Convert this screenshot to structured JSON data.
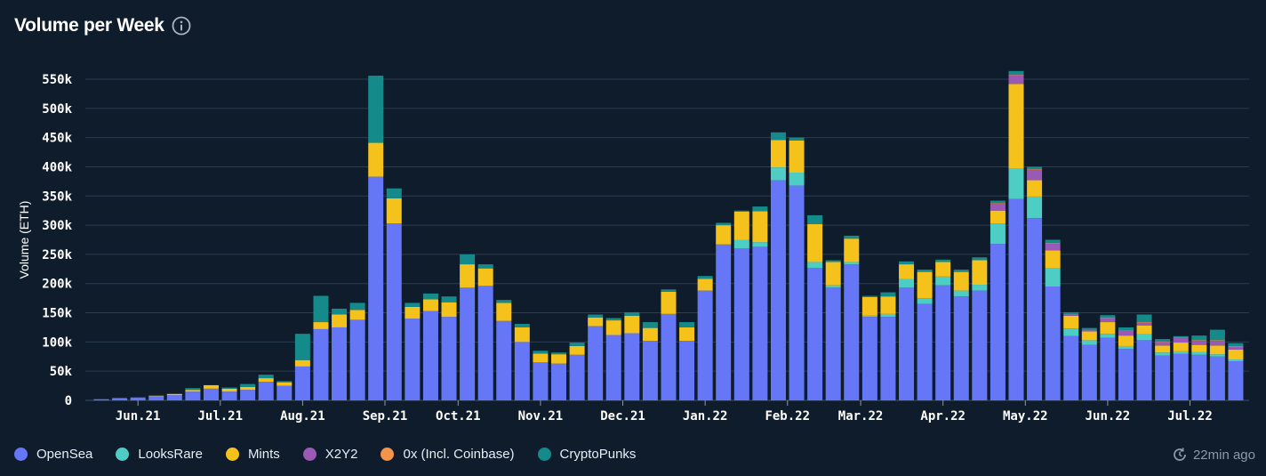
{
  "header": {
    "title": "Volume per Week",
    "info_icon": "info-circle-icon"
  },
  "status": {
    "refresh_icon": "refresh-clock-icon",
    "updated": "22min ago"
  },
  "chart_data": {
    "type": "bar",
    "stacked": true,
    "title": "Volume per Week",
    "xlabel": "",
    "ylabel": "Volume (ETH)",
    "ylim": [
      0,
      570000
    ],
    "yticks": [
      0,
      50000,
      100000,
      150000,
      200000,
      250000,
      300000,
      350000,
      400000,
      450000,
      500000,
      550000
    ],
    "ytick_labels": [
      "0",
      "50k",
      "100k",
      "150k",
      "200k",
      "250k",
      "300k",
      "350k",
      "400k",
      "450k",
      "500k",
      "550k"
    ],
    "x_ticks": [
      {
        "label": "Jun.21",
        "index": 2
      },
      {
        "label": "Jul.21",
        "index": 6.5
      },
      {
        "label": "Aug.21",
        "index": 11
      },
      {
        "label": "Sep.21",
        "index": 15.5
      },
      {
        "label": "Oct.21",
        "index": 19.5
      },
      {
        "label": "Nov.21",
        "index": 24
      },
      {
        "label": "Dec.21",
        "index": 28.5
      },
      {
        "label": "Jan.22",
        "index": 33
      },
      {
        "label": "Feb.22",
        "index": 37.5
      },
      {
        "label": "Mar.22",
        "index": 41.5
      },
      {
        "label": "Apr.22",
        "index": 46
      },
      {
        "label": "May.22",
        "index": 50.5
      },
      {
        "label": "Jun.22",
        "index": 55
      },
      {
        "label": "Jul.22",
        "index": 59.5
      }
    ],
    "legend": [
      "OpenSea",
      "LooksRare",
      "Mints",
      "X2Y2",
      "0x (Incl. Coinbase)",
      "CryptoPunks"
    ],
    "colors": {
      "OpenSea": "#6577f7",
      "LooksRare": "#4ecdc4",
      "Mints": "#f5c21b",
      "X2Y2": "#9b59b6",
      "0x (Incl. Coinbase)": "#f39449",
      "CryptoPunks": "#148a8a"
    },
    "series": [
      {
        "name": "OpenSea",
        "values": [
          2000,
          4000,
          5000,
          7000,
          9000,
          15000,
          20000,
          15000,
          18000,
          32000,
          25000,
          58000,
          122000,
          125000,
          138000,
          383000,
          303000,
          140000,
          153000,
          143000,
          193000,
          196000,
          136000,
          100000,
          65000,
          63000,
          78000,
          127000,
          112000,
          115000,
          102000,
          148000,
          102000,
          188000,
          267000,
          260000,
          263000,
          377000,
          368000,
          227000,
          193000,
          233000,
          143000,
          143000,
          193000,
          165000,
          197000,
          178000,
          188000,
          268000,
          345000,
          312000,
          195000,
          110000,
          95000,
          107000,
          88000,
          103000,
          77000,
          80000,
          78000,
          75000,
          67000
        ]
      },
      {
        "name": "LooksRare",
        "values": [
          0,
          0,
          0,
          0,
          0,
          0,
          0,
          0,
          0,
          0,
          0,
          0,
          0,
          0,
          0,
          0,
          0,
          0,
          0,
          0,
          0,
          0,
          0,
          0,
          0,
          0,
          0,
          0,
          0,
          0,
          0,
          0,
          0,
          0,
          0,
          15000,
          8000,
          22000,
          22000,
          10000,
          4000,
          4000,
          2000,
          5000,
          15000,
          10000,
          15000,
          10000,
          10000,
          35000,
          52000,
          37000,
          32000,
          13000,
          8000,
          7000,
          5000,
          10000,
          5000,
          4000,
          5000,
          4000,
          3000
        ]
      },
      {
        "name": "Mints",
        "values": [
          0,
          0,
          0,
          1000,
          2000,
          3000,
          6000,
          5000,
          5000,
          6000,
          6000,
          11000,
          12000,
          22000,
          17000,
          58000,
          43000,
          20000,
          20000,
          25000,
          40000,
          30000,
          31000,
          25000,
          15000,
          16000,
          15000,
          15000,
          25000,
          30000,
          22000,
          38000,
          23000,
          20000,
          33000,
          48000,
          53000,
          47000,
          55000,
          65000,
          40000,
          40000,
          32000,
          30000,
          25000,
          45000,
          25000,
          32000,
          42000,
          22000,
          145000,
          28000,
          30000,
          22000,
          15000,
          20000,
          18000,
          15000,
          12000,
          15000,
          12000,
          15000,
          17000
        ]
      },
      {
        "name": "X2Y2",
        "values": [
          0,
          0,
          0,
          0,
          0,
          0,
          0,
          0,
          0,
          0,
          0,
          0,
          0,
          0,
          0,
          0,
          0,
          0,
          0,
          0,
          0,
          0,
          0,
          0,
          0,
          0,
          0,
          0,
          0,
          0,
          0,
          0,
          0,
          0,
          0,
          0,
          0,
          0,
          0,
          0,
          0,
          0,
          0,
          0,
          0,
          0,
          0,
          0,
          0,
          12000,
          15000,
          18000,
          12000,
          3000,
          3000,
          7000,
          8000,
          5000,
          6000,
          8000,
          7000,
          8000,
          5000
        ]
      },
      {
        "name": "0x (Incl. Coinbase)",
        "values": [
          0,
          0,
          0,
          0,
          0,
          0,
          0,
          0,
          0,
          0,
          0,
          0,
          0,
          0,
          0,
          0,
          0,
          0,
          0,
          0,
          0,
          0,
          0,
          0,
          0,
          0,
          0,
          0,
          0,
          0,
          0,
          0,
          0,
          0,
          0,
          0,
          0,
          0,
          0,
          0,
          0,
          0,
          0,
          0,
          0,
          0,
          0,
          0,
          0,
          1000,
          1000,
          1000,
          1000,
          0,
          0,
          1000,
          1000,
          1000,
          1000,
          1000,
          1000,
          1000,
          1000
        ]
      },
      {
        "name": "CryptoPunks",
        "values": [
          0,
          0,
          0,
          0,
          0,
          3000,
          0,
          2000,
          5000,
          6000,
          2000,
          45000,
          45000,
          10000,
          12000,
          115000,
          17000,
          7000,
          10000,
          10000,
          17000,
          7000,
          5000,
          6000,
          5000,
          3000,
          6000,
          5000,
          4000,
          6000,
          10000,
          4000,
          9000,
          5000,
          4000,
          2000,
          8000,
          13000,
          5000,
          15000,
          3000,
          5000,
          2000,
          7000,
          5000,
          4000,
          4000,
          4000,
          5000,
          4000,
          6000,
          4000,
          5000,
          3000,
          3000,
          4000,
          5000,
          13000,
          4000,
          2000,
          8000,
          18000,
          5000
        ]
      }
    ]
  }
}
